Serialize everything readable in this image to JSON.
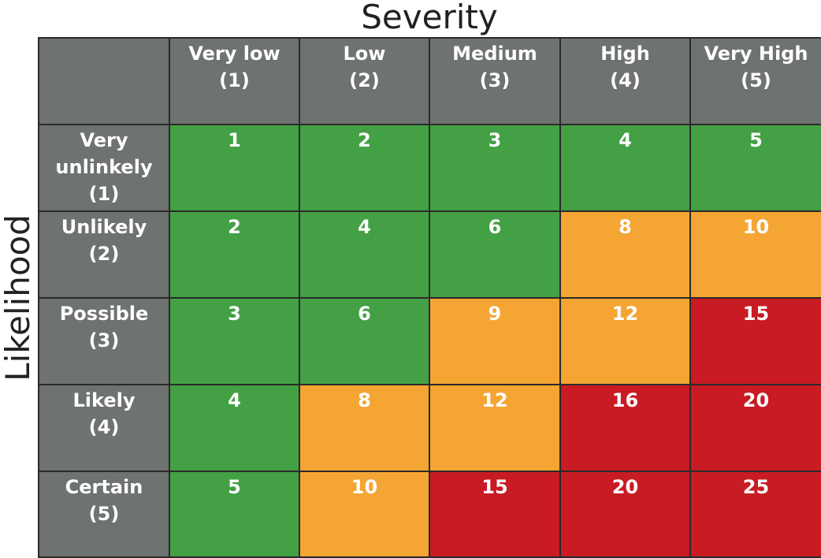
{
  "titles": {
    "severity": "Severity",
    "likelihood": "Likelihood"
  },
  "colors": {
    "header": "#6e7270",
    "low": "#43a044",
    "medium": "#f4a533",
    "high": "#c91b24",
    "border": "#2a2a2a"
  },
  "columns": [
    {
      "label": "Very low\n(1)"
    },
    {
      "label": "Low\n(2)"
    },
    {
      "label": "Medium\n(3)"
    },
    {
      "label": "High\n(4)"
    },
    {
      "label": "Very High\n(5)"
    }
  ],
  "rows": [
    {
      "label": "Very\nunlinkely\n(1)",
      "cells": [
        {
          "value": "1",
          "level": "low"
        },
        {
          "value": "2",
          "level": "low"
        },
        {
          "value": "3",
          "level": "low"
        },
        {
          "value": "4",
          "level": "low"
        },
        {
          "value": "5",
          "level": "low"
        }
      ]
    },
    {
      "label": "Unlikely\n(2)",
      "cells": [
        {
          "value": "2",
          "level": "low"
        },
        {
          "value": "4",
          "level": "low"
        },
        {
          "value": "6",
          "level": "low"
        },
        {
          "value": "8",
          "level": "med"
        },
        {
          "value": "10",
          "level": "med"
        }
      ]
    },
    {
      "label": "Possible\n(3)",
      "cells": [
        {
          "value": "3",
          "level": "low"
        },
        {
          "value": "6",
          "level": "low"
        },
        {
          "value": "9",
          "level": "med"
        },
        {
          "value": "12",
          "level": "med"
        },
        {
          "value": "15",
          "level": "high"
        }
      ]
    },
    {
      "label": "Likely\n(4)",
      "cells": [
        {
          "value": "4",
          "level": "low"
        },
        {
          "value": "8",
          "level": "med"
        },
        {
          "value": "12",
          "level": "med"
        },
        {
          "value": "16",
          "level": "high"
        },
        {
          "value": "20",
          "level": "high"
        }
      ]
    },
    {
      "label": "Certain\n(5)",
      "cells": [
        {
          "value": "5",
          "level": "low"
        },
        {
          "value": "10",
          "level": "med"
        },
        {
          "value": "15",
          "level": "high"
        },
        {
          "value": "20",
          "level": "high"
        },
        {
          "value": "25",
          "level": "high"
        }
      ]
    }
  ]
}
